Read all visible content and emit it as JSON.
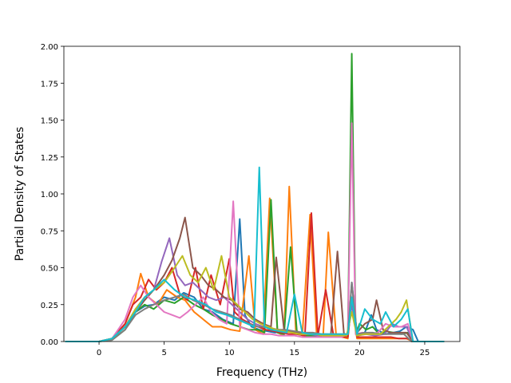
{
  "chart_data": {
    "type": "line",
    "title": "",
    "xlabel": "Frequency (THz)",
    "ylabel": "Partial Density of States",
    "xlim": [
      -2.7,
      27.7
    ],
    "ylim": [
      0.0,
      2.0
    ],
    "xticks": [
      0,
      5,
      10,
      15,
      20,
      25
    ],
    "xtick_labels": [
      "0",
      "5",
      "10",
      "15",
      "20",
      "25"
    ],
    "yticks": [
      0.0,
      0.25,
      0.5,
      0.75,
      1.0,
      1.25,
      1.5,
      1.75,
      2.0
    ],
    "ytick_labels": [
      "0.00",
      "0.25",
      "0.50",
      "0.75",
      "1.00",
      "1.25",
      "1.50",
      "1.75",
      "2.00"
    ],
    "grid": false,
    "legend": "none",
    "colors": [
      "#1f77b4",
      "#ff7f0e",
      "#2ca02c",
      "#d62728",
      "#9467bd",
      "#8c564b",
      "#e377c2",
      "#7f7f7f",
      "#bcbd22",
      "#17becf"
    ],
    "series": [
      {
        "x": [
          -2.6,
          0,
          1,
          2,
          2.8,
          3.5,
          4.2,
          5,
          5.8,
          6.5,
          7.3,
          8,
          8.7,
          9.5,
          10.3,
          10.8,
          11.2,
          11.7,
          12.3,
          12.9,
          13.5,
          14.2,
          14.9,
          15.6,
          16.3,
          17,
          17.8,
          18.5,
          19.1,
          19.4,
          19.8,
          20.4,
          20.9,
          21.3,
          22,
          22.6,
          23.1,
          23.6,
          24.1,
          24.5,
          26.5
        ],
        "y": [
          0,
          0,
          0.02,
          0.1,
          0.2,
          0.24,
          0.25,
          0.3,
          0.28,
          0.33,
          0.3,
          0.22,
          0.2,
          0.15,
          0.12,
          0.83,
          0.18,
          0.1,
          0.08,
          0.07,
          0.06,
          0.07,
          0.06,
          0.05,
          0.05,
          0.04,
          0.04,
          0.03,
          0.03,
          0.4,
          0.05,
          0.06,
          0.18,
          0.08,
          0.05,
          0.06,
          0.07,
          0.1,
          0.08,
          0,
          0
        ]
      },
      {
        "x": [
          -2.6,
          0,
          1,
          2,
          2.8,
          3.2,
          3.8,
          4.5,
          5.2,
          6,
          6.6,
          7.3,
          8,
          8.7,
          9.4,
          10.1,
          10.8,
          11.5,
          12,
          12.6,
          13.1,
          13.7,
          14.2,
          14.6,
          15.1,
          15.6,
          16.2,
          16.7,
          17.2,
          17.6,
          18.2,
          18.7,
          19.1,
          19.4,
          19.8,
          20.4,
          21,
          21.6,
          22.3,
          23,
          23.6,
          24.1,
          26.5
        ],
        "y": [
          0,
          0,
          0.02,
          0.12,
          0.3,
          0.46,
          0.3,
          0.25,
          0.35,
          0.3,
          0.28,
          0.2,
          0.15,
          0.1,
          0.1,
          0.08,
          0.07,
          0.58,
          0.08,
          0.05,
          0.97,
          0.06,
          0.04,
          1.05,
          0.08,
          0.04,
          0.86,
          0.05,
          0.03,
          0.74,
          0.04,
          0.03,
          0.02,
          0.3,
          0.02,
          0.02,
          0.02,
          0.02,
          0.02,
          0.02,
          0.02,
          0,
          0
        ]
      },
      {
        "x": [
          -2.6,
          0,
          1,
          2,
          2.8,
          3.5,
          4.2,
          5,
          5.8,
          6.5,
          7.3,
          8,
          8.7,
          9.4,
          10.1,
          10.8,
          11.5,
          12.2,
          12.7,
          13.2,
          13.7,
          14.2,
          14.7,
          15.2,
          15.8,
          16.4,
          17,
          17.6,
          18.2,
          18.7,
          19.1,
          19.4,
          19.7,
          20,
          20.5,
          21,
          21.5,
          22,
          22.6,
          23.2,
          23.7,
          24.1,
          26.5
        ],
        "y": [
          0,
          0,
          0.01,
          0.08,
          0.2,
          0.25,
          0.22,
          0.28,
          0.26,
          0.3,
          0.25,
          0.22,
          0.18,
          0.15,
          0.12,
          0.1,
          0.08,
          0.08,
          0.06,
          0.96,
          0.06,
          0.05,
          0.64,
          0.05,
          0.04,
          0.04,
          0.03,
          0.04,
          0.03,
          0.03,
          0.05,
          1.95,
          0.05,
          0.12,
          0.08,
          0.1,
          0.05,
          0.07,
          0.06,
          0.05,
          0.06,
          0,
          0
        ]
      },
      {
        "x": [
          -2.6,
          0,
          1,
          2,
          2.6,
          3.2,
          3.8,
          4.4,
          5,
          5.6,
          6.2,
          6.8,
          7.4,
          8,
          8.6,
          9.3,
          10,
          10.4,
          11,
          11.6,
          12.2,
          12.8,
          13.4,
          14,
          14.6,
          15.2,
          15.8,
          16.3,
          16.8,
          17.4,
          18,
          18.6,
          19.1,
          19.4,
          19.8,
          20.5,
          21.2,
          21.8,
          22.4,
          23,
          23.7,
          24.1,
          26.5
        ],
        "y": [
          0,
          0,
          0.02,
          0.12,
          0.25,
          0.3,
          0.42,
          0.35,
          0.4,
          0.5,
          0.32,
          0.28,
          0.5,
          0.22,
          0.45,
          0.25,
          0.56,
          0.2,
          0.15,
          0.12,
          0.1,
          0.08,
          0.07,
          0.06,
          0.05,
          0.05,
          0.04,
          0.87,
          0.04,
          0.35,
          0.04,
          0.03,
          0.03,
          0.28,
          0.03,
          0.03,
          0.03,
          0.03,
          0.03,
          0.02,
          0.02,
          0,
          0
        ]
      },
      {
        "x": [
          -2.6,
          0,
          1,
          2,
          2.8,
          3.5,
          4.2,
          4.8,
          5.4,
          6,
          6.6,
          7.2,
          7.8,
          8.4,
          9,
          9.6,
          10.2,
          10.8,
          11.4,
          12,
          12.6,
          13.2,
          13.8,
          14.4,
          15,
          15.6,
          16.2,
          16.8,
          17.4,
          18,
          18.6,
          19.1,
          19.4,
          19.8,
          20.5,
          21.2,
          21.9,
          22.5,
          23,
          23.6,
          24.1,
          26.5
        ],
        "y": [
          0,
          0,
          0.02,
          0.1,
          0.22,
          0.3,
          0.35,
          0.54,
          0.7,
          0.45,
          0.38,
          0.4,
          0.35,
          0.3,
          0.28,
          0.3,
          0.25,
          0.2,
          0.15,
          0.12,
          0.1,
          0.09,
          0.08,
          0.07,
          0.06,
          0.05,
          0.05,
          0.04,
          0.05,
          0.04,
          0.04,
          0.05,
          0.25,
          0.04,
          0.05,
          0.04,
          0.05,
          0.12,
          0.1,
          0.1,
          0,
          0
        ]
      },
      {
        "x": [
          -2.6,
          0,
          1,
          2,
          2.8,
          3.5,
          4.2,
          5,
          5.6,
          6.2,
          6.6,
          7.2,
          7.8,
          8.4,
          9,
          9.6,
          10.2,
          10.8,
          11.4,
          12,
          12.6,
          13.2,
          13.6,
          14.2,
          14.8,
          15.4,
          16,
          16.6,
          17.2,
          17.8,
          18.3,
          18.8,
          19.1,
          19.4,
          19.8,
          20.4,
          21,
          21.3,
          21.8,
          22.4,
          23,
          23.6,
          24.1,
          26.5
        ],
        "y": [
          0,
          0,
          0.02,
          0.1,
          0.2,
          0.28,
          0.35,
          0.45,
          0.55,
          0.7,
          0.84,
          0.5,
          0.45,
          0.38,
          0.35,
          0.3,
          0.28,
          0.22,
          0.2,
          0.15,
          0.12,
          0.1,
          0.57,
          0.08,
          0.07,
          0.06,
          0.05,
          0.05,
          0.04,
          0.05,
          0.61,
          0.05,
          0.05,
          0.3,
          0.06,
          0.12,
          0.15,
          0.28,
          0.08,
          0.06,
          0.06,
          0.06,
          0,
          0
        ]
      },
      {
        "x": [
          -2.6,
          0,
          1,
          2,
          2.6,
          3.2,
          3.8,
          4.4,
          5,
          5.6,
          6.2,
          6.8,
          7.4,
          8,
          8.6,
          9.2,
          9.8,
          10.3,
          10.8,
          11.4,
          12,
          12.6,
          13.2,
          13.8,
          14.4,
          15,
          15.6,
          16.2,
          16.8,
          17.4,
          18,
          18.6,
          19.1,
          19.4,
          19.7,
          20.2,
          20.8,
          21.4,
          22,
          22.6,
          23.2,
          23.7,
          24.1,
          26.5
        ],
        "y": [
          0,
          0,
          0.02,
          0.15,
          0.3,
          0.38,
          0.3,
          0.25,
          0.2,
          0.18,
          0.16,
          0.2,
          0.25,
          0.3,
          0.2,
          0.15,
          0.12,
          0.95,
          0.1,
          0.08,
          0.06,
          0.05,
          0.05,
          0.04,
          0.04,
          0.04,
          0.03,
          0.03,
          0.03,
          0.03,
          0.03,
          0.03,
          0.05,
          1.48,
          0.05,
          0.06,
          0.05,
          0.06,
          0.12,
          0.1,
          0.1,
          0.12,
          0,
          0
        ]
      },
      {
        "x": [
          -2.6,
          0,
          1,
          2,
          2.8,
          3.5,
          4.2,
          5,
          5.8,
          6.5,
          7.2,
          8,
          8.7,
          9.4,
          10.1,
          10.8,
          11.5,
          12.2,
          12.9,
          13.6,
          14.3,
          15,
          15.7,
          16.4,
          17.1,
          17.8,
          18.5,
          19.1,
          19.4,
          19.8,
          20.4,
          21,
          21.6,
          22.2,
          22.8,
          23.4,
          24,
          26.5
        ],
        "y": [
          0,
          0,
          0.01,
          0.08,
          0.18,
          0.22,
          0.25,
          0.28,
          0.3,
          0.32,
          0.28,
          0.25,
          0.22,
          0.2,
          0.18,
          0.15,
          0.12,
          0.1,
          0.1,
          0.08,
          0.08,
          0.07,
          0.06,
          0.06,
          0.05,
          0.05,
          0.05,
          0.05,
          0.4,
          0.05,
          0.06,
          0.06,
          0.05,
          0.05,
          0.05,
          0.05,
          0,
          0
        ]
      },
      {
        "x": [
          -2.6,
          0,
          1,
          2,
          2.8,
          3.5,
          4.2,
          5,
          5.8,
          6.4,
          7,
          7.6,
          8.2,
          8.8,
          9.4,
          10,
          10.6,
          11.2,
          11.8,
          12.4,
          13,
          13.6,
          14.2,
          14.8,
          15.4,
          16,
          16.6,
          17.2,
          17.8,
          18.4,
          19,
          19.4,
          19.8,
          20.4,
          21,
          21.6,
          22.2,
          22.8,
          23.2,
          23.6,
          24.1,
          26.5
        ],
        "y": [
          0,
          0,
          0.02,
          0.1,
          0.22,
          0.3,
          0.35,
          0.4,
          0.5,
          0.58,
          0.45,
          0.4,
          0.5,
          0.35,
          0.58,
          0.3,
          0.25,
          0.2,
          0.15,
          0.12,
          0.1,
          0.08,
          0.07,
          0.06,
          0.05,
          0.05,
          0.05,
          0.04,
          0.04,
          0.04,
          0.04,
          0.2,
          0.04,
          0.05,
          0.05,
          0.05,
          0.1,
          0.15,
          0.2,
          0.28,
          0,
          0
        ]
      },
      {
        "x": [
          -2.6,
          0,
          1,
          2,
          2.8,
          3.5,
          4.2,
          5,
          5.8,
          6.6,
          7.4,
          8.2,
          9,
          9.8,
          10.6,
          11.4,
          11.9,
          12.3,
          12.7,
          13.2,
          13.8,
          14.4,
          15,
          15.6,
          16.2,
          16.8,
          17.4,
          18,
          18.6,
          19.1,
          19.4,
          19.8,
          20.4,
          21,
          21.6,
          22,
          22.6,
          23.2,
          23.7,
          24.1,
          26.5
        ],
        "y": [
          0,
          0,
          0.02,
          0.1,
          0.2,
          0.3,
          0.35,
          0.42,
          0.35,
          0.3,
          0.28,
          0.25,
          0.2,
          0.18,
          0.15,
          0.12,
          0.1,
          1.18,
          0.1,
          0.08,
          0.07,
          0.06,
          0.32,
          0.06,
          0.05,
          0.05,
          0.05,
          0.05,
          0.05,
          0.05,
          0.3,
          0.05,
          0.22,
          0.15,
          0.12,
          0.2,
          0.1,
          0.15,
          0.22,
          0,
          0
        ]
      }
    ]
  }
}
